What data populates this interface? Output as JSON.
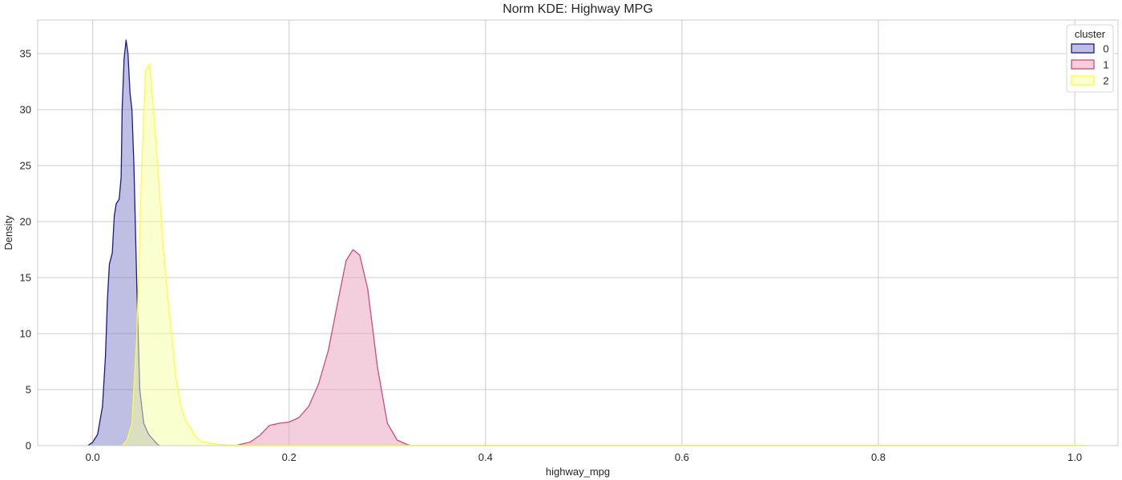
{
  "chart_data": {
    "type": "area",
    "title": "Norm KDE: Highway MPG",
    "xlabel": "highway_mpg",
    "ylabel": "Density",
    "xlim": [
      -0.056,
      1.044
    ],
    "ylim": [
      0,
      38
    ],
    "x_ticks": [
      0.0,
      0.2,
      0.4,
      0.6,
      0.8,
      1.0
    ],
    "x_tick_labels": [
      "0.0",
      "0.2",
      "0.4",
      "0.6",
      "0.8",
      "1.0"
    ],
    "y_ticks": [
      0,
      5,
      10,
      15,
      20,
      25,
      30,
      35
    ],
    "y_tick_labels": [
      "0",
      "5",
      "10",
      "15",
      "20",
      "25",
      "30",
      "35"
    ],
    "grid": true,
    "legend": {
      "title": "cluster",
      "placement": "top-right"
    },
    "series": [
      {
        "name": "0",
        "line_color": "#1a1a8c",
        "fill_color": "#8080c8",
        "points": [
          [
            -0.005,
            0
          ],
          [
            0.0,
            0.3
          ],
          [
            0.005,
            1.0
          ],
          [
            0.01,
            3.5
          ],
          [
            0.013,
            8.0
          ],
          [
            0.015,
            13.0
          ],
          [
            0.017,
            16.2
          ],
          [
            0.02,
            17.2
          ],
          [
            0.022,
            20.5
          ],
          [
            0.024,
            21.6
          ],
          [
            0.027,
            22.0
          ],
          [
            0.029,
            24.0
          ],
          [
            0.03,
            30.0
          ],
          [
            0.032,
            34.5
          ],
          [
            0.034,
            36.2
          ],
          [
            0.036,
            35.0
          ],
          [
            0.038,
            31.5
          ],
          [
            0.04,
            30.0
          ],
          [
            0.042,
            25.0
          ],
          [
            0.045,
            14.0
          ],
          [
            0.048,
            5.0
          ],
          [
            0.052,
            2.0
          ],
          [
            0.057,
            1.0
          ],
          [
            0.062,
            0.5
          ],
          [
            0.066,
            0.1
          ],
          [
            0.068,
            0
          ]
        ]
      },
      {
        "name": "1",
        "line_color": "#d04a7a",
        "fill_color": "#e8a0bc",
        "points": [
          [
            0.145,
            0
          ],
          [
            0.16,
            0.3
          ],
          [
            0.17,
            0.9
          ],
          [
            0.18,
            1.8
          ],
          [
            0.19,
            2.0
          ],
          [
            0.2,
            2.1
          ],
          [
            0.21,
            2.5
          ],
          [
            0.22,
            3.5
          ],
          [
            0.23,
            5.5
          ],
          [
            0.24,
            8.5
          ],
          [
            0.25,
            13.0
          ],
          [
            0.258,
            16.5
          ],
          [
            0.265,
            17.5
          ],
          [
            0.272,
            17.0
          ],
          [
            0.28,
            14.0
          ],
          [
            0.29,
            7.0
          ],
          [
            0.3,
            2.0
          ],
          [
            0.31,
            0.5
          ],
          [
            0.32,
            0.1
          ],
          [
            0.325,
            0
          ]
        ]
      },
      {
        "name": "2",
        "line_color": "#ffff33",
        "fill_color": "#f6ffa0",
        "points": [
          [
            0.03,
            0
          ],
          [
            0.035,
            0.5
          ],
          [
            0.04,
            2.0
          ],
          [
            0.045,
            10.0
          ],
          [
            0.05,
            25.0
          ],
          [
            0.054,
            33.5
          ],
          [
            0.058,
            34.1
          ],
          [
            0.062,
            30.0
          ],
          [
            0.067,
            24.0
          ],
          [
            0.072,
            17.5
          ],
          [
            0.078,
            12.0
          ],
          [
            0.085,
            6.0
          ],
          [
            0.09,
            3.5
          ],
          [
            0.095,
            2.2
          ],
          [
            0.1,
            1.5
          ],
          [
            0.105,
            0.8
          ],
          [
            0.11,
            0.4
          ],
          [
            0.12,
            0.2
          ],
          [
            0.13,
            0.1
          ],
          [
            0.15,
            0.03
          ],
          [
            0.25,
            0.03
          ],
          [
            0.4,
            0.03
          ],
          [
            0.6,
            0.03
          ],
          [
            0.8,
            0.03
          ],
          [
            1.0,
            0.03
          ],
          [
            1.012,
            0
          ]
        ]
      }
    ]
  }
}
